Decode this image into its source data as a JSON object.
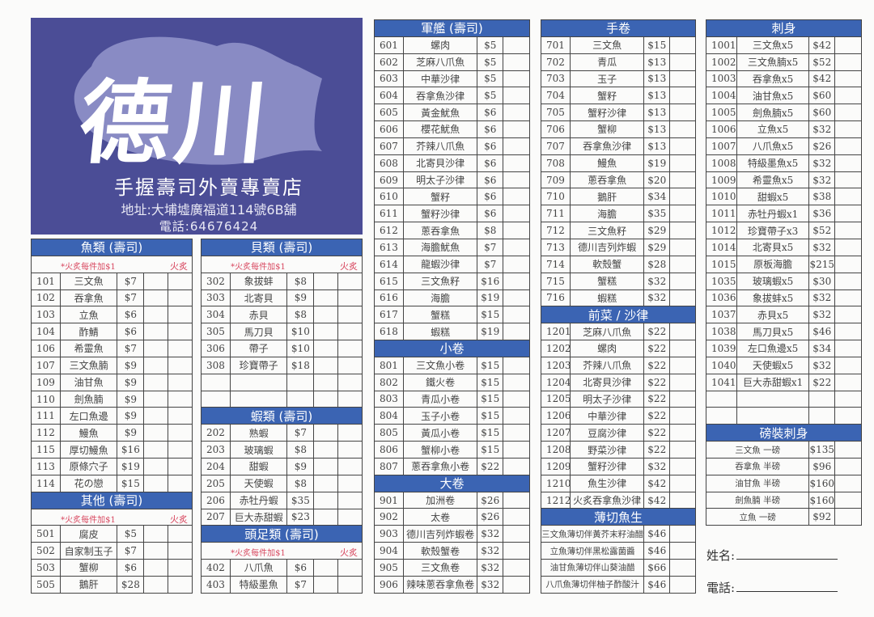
{
  "header": {
    "brand": "德川",
    "tagline": "手握壽司外賣專賣店",
    "address": "地址:大埔墟廣福道114號6B舖",
    "phone": "電話:64676424"
  },
  "colors": {
    "header_blue": "#3b64b3",
    "logo_bg": "#4b4d96",
    "note_red": "#d8475f"
  },
  "columns": [
    {
      "blocks": [
        {
          "type": "header",
          "title": "魚類 (壽司)"
        },
        {
          "type": "note",
          "text": "*火炙每件加$1",
          "right": "火炙"
        },
        {
          "type": "rows",
          "rows": [
            [
              "101",
              "三文魚",
              "$7"
            ],
            [
              "102",
              "吞拿魚",
              "$7"
            ],
            [
              "103",
              "立魚",
              "$6"
            ],
            [
              "104",
              "酢鯖",
              "$6"
            ],
            [
              "106",
              "希靈魚",
              "$7"
            ],
            [
              "107",
              "三文魚腩",
              "$9"
            ],
            [
              "109",
              "油甘魚",
              "$9"
            ],
            [
              "110",
              "劍魚腩",
              "$9"
            ],
            [
              "111",
              "左口魚邊",
              "$9"
            ],
            [
              "112",
              "鰻魚",
              "$9"
            ],
            [
              "115",
              "厚切鰻魚",
              "$16"
            ],
            [
              "113",
              "原條穴子",
              "$19"
            ],
            [
              "114",
              "花の戀",
              "$15"
            ]
          ]
        },
        {
          "type": "header",
          "title": "其他 (壽司)"
        },
        {
          "type": "note",
          "text": "*火炙每件加$1",
          "right": "火炙"
        },
        {
          "type": "rows",
          "rows": [
            [
              "501",
              "腐皮",
              "$5"
            ],
            [
              "502",
              "自家制玉子",
              "$7"
            ],
            [
              "503",
              "蟹柳",
              "$6"
            ],
            [
              "505",
              "鵝肝",
              "$28"
            ]
          ]
        }
      ]
    },
    {
      "blocks": [
        {
          "type": "header",
          "title": "貝類 (壽司)"
        },
        {
          "type": "note",
          "text": "*火炙每件加$1",
          "right": "火炙"
        },
        {
          "type": "rows",
          "rows": [
            [
              "302",
              "象拔蚌",
              "$8"
            ],
            [
              "303",
              "北寄貝",
              "$9"
            ],
            [
              "304",
              "赤貝",
              "$8"
            ],
            [
              "305",
              "馬刀貝",
              "$10"
            ],
            [
              "306",
              "帶子",
              "$10"
            ],
            [
              "308",
              "珍寶帶子",
              "$18"
            ],
            [
              "",
              "",
              ""
            ],
            [
              "",
              "",
              ""
            ]
          ]
        },
        {
          "type": "header",
          "title": "蝦類 (壽司)"
        },
        {
          "type": "rows",
          "rows": [
            [
              "202",
              "熟蝦",
              "$7"
            ],
            [
              "203",
              "玻璃蝦",
              "$8"
            ],
            [
              "204",
              "甜蝦",
              "$9"
            ],
            [
              "205",
              "天使蝦",
              "$8"
            ],
            [
              "206",
              "赤牡丹蝦",
              "$35"
            ],
            [
              "207",
              "巨大赤甜蝦",
              "$23"
            ]
          ]
        },
        {
          "type": "header",
          "title": "頭足類 (壽司)"
        },
        {
          "type": "note",
          "text": "*火炙每件加$1",
          "right": "火炙"
        },
        {
          "type": "rows",
          "rows": [
            [
              "402",
              "八爪魚",
              "$6"
            ],
            [
              "403",
              "特級墨魚",
              "$7"
            ]
          ]
        }
      ]
    },
    {
      "blocks": [
        {
          "type": "header",
          "title": "軍艦 (壽司)"
        },
        {
          "type": "rows",
          "rows": [
            [
              "601",
              "螺肉",
              "$5"
            ],
            [
              "602",
              "芝麻八爪魚",
              "$5"
            ],
            [
              "603",
              "中華沙律",
              "$5"
            ],
            [
              "604",
              "吞拿魚沙律",
              "$5"
            ],
            [
              "605",
              "黃金魷魚",
              "$6"
            ],
            [
              "606",
              "櫻花魷魚",
              "$6"
            ],
            [
              "607",
              "芥辣八爪魚",
              "$6"
            ],
            [
              "608",
              "北寄貝沙律",
              "$6"
            ],
            [
              "609",
              "明太子沙律",
              "$6"
            ],
            [
              "610",
              "蟹籽",
              "$6"
            ],
            [
              "611",
              "蟹籽沙律",
              "$6"
            ],
            [
              "612",
              "蔥吞拿魚",
              "$8"
            ],
            [
              "613",
              "海膽魷魚",
              "$7"
            ],
            [
              "614",
              "龍蝦沙律",
              "$7"
            ],
            [
              "615",
              "三文魚籽",
              "$16"
            ],
            [
              "616",
              "海膽",
              "$19"
            ],
            [
              "617",
              "蟹糕",
              "$15"
            ],
            [
              "618",
              "蝦糕",
              "$19"
            ]
          ]
        },
        {
          "type": "header",
          "title": "小卷"
        },
        {
          "type": "rows",
          "rows": [
            [
              "801",
              "三文魚小卷",
              "$15"
            ],
            [
              "802",
              "鐵火卷",
              "$15"
            ],
            [
              "803",
              "青瓜小卷",
              "$15"
            ],
            [
              "804",
              "玉子小卷",
              "$15"
            ],
            [
              "805",
              "黃瓜小卷",
              "$15"
            ],
            [
              "806",
              "蟹柳小卷",
              "$15"
            ],
            [
              "807",
              "蔥吞拿魚小卷",
              "$22"
            ]
          ]
        },
        {
          "type": "header",
          "title": "大卷"
        },
        {
          "type": "rows",
          "rows": [
            [
              "901",
              "加洲卷",
              "$26"
            ],
            [
              "902",
              "太卷",
              "$26"
            ],
            [
              "903",
              "德川吉列炸蝦卷",
              "$32"
            ],
            [
              "904",
              "軟殼蟹卷",
              "$32"
            ],
            [
              "905",
              "三文魚卷",
              "$32"
            ],
            [
              "906",
              "辣味蔥吞拿魚卷",
              "$32"
            ]
          ]
        }
      ]
    },
    {
      "blocks": [
        {
          "type": "header",
          "title": "手卷"
        },
        {
          "type": "rows",
          "rows": [
            [
              "701",
              "三文魚",
              "$15"
            ],
            [
              "702",
              "青瓜",
              "$13"
            ],
            [
              "703",
              "玉子",
              "$13"
            ],
            [
              "704",
              "蟹籽",
              "$13"
            ],
            [
              "705",
              "蟹籽沙律",
              "$13"
            ],
            [
              "706",
              "蟹柳",
              "$13"
            ],
            [
              "707",
              "吞拿魚沙律",
              "$13"
            ],
            [
              "708",
              "鰻魚",
              "$19"
            ],
            [
              "709",
              "蔥吞拿魚",
              "$20"
            ],
            [
              "710",
              "鵝肝",
              "$34"
            ],
            [
              "711",
              "海膽",
              "$35"
            ],
            [
              "712",
              "三文魚籽",
              "$29"
            ],
            [
              "713",
              "德川吉列炸蝦",
              "$29"
            ],
            [
              "714",
              "軟殼蟹",
              "$28"
            ],
            [
              "715",
              "蟹糕",
              "$32"
            ],
            [
              "716",
              "蝦糕",
              "$32"
            ]
          ]
        },
        {
          "type": "header",
          "title": "前菜 / 沙律"
        },
        {
          "type": "rows",
          "rows": [
            [
              "1201",
              "芝麻八爪魚",
              "$22"
            ],
            [
              "1202",
              "螺肉",
              "$22"
            ],
            [
              "1203",
              "芥辣八爪魚",
              "$22"
            ],
            [
              "1204",
              "北寄貝沙律",
              "$22"
            ],
            [
              "1205",
              "明太子沙律",
              "$22"
            ],
            [
              "1206",
              "中華沙律",
              "$22"
            ],
            [
              "1207",
              "豆腐沙律",
              "$22"
            ],
            [
              "1208",
              "野菜沙律",
              "$22"
            ],
            [
              "1209",
              "蟹籽沙律",
              "$32"
            ],
            [
              "1210",
              "魚生沙律",
              "$42"
            ],
            [
              "1212",
              "火炙吞拿魚沙律",
              "$42"
            ]
          ]
        },
        {
          "type": "header",
          "title": "薄切魚生"
        },
        {
          "type": "rows",
          "rows": [
            [
              "三文魚薄切伴黃芥末籽油醋",
              "$46"
            ],
            [
              "立魚薄切伴黑松露菌醬",
              "$46"
            ],
            [
              "油甘魚薄切伴山葵油醋",
              "$66"
            ],
            [
              "八爪魚薄切伴柚子酢酸汁",
              "$46"
            ]
          ]
        }
      ]
    },
    {
      "blocks": [
        {
          "type": "header",
          "title": "刺身"
        },
        {
          "type": "rows",
          "rows": [
            [
              "1001",
              "三文魚x5",
              "$42"
            ],
            [
              "1002",
              "三文魚腩x5",
              "$52"
            ],
            [
              "1003",
              "吞拿魚x5",
              "$42"
            ],
            [
              "1004",
              "油甘魚x5",
              "$60"
            ],
            [
              "1005",
              "劍魚腩x5",
              "$60"
            ],
            [
              "1006",
              "立魚x5",
              "$32"
            ],
            [
              "1007",
              "八爪魚x5",
              "$26"
            ],
            [
              "1008",
              "特級墨魚x5",
              "$32"
            ],
            [
              "1009",
              "希靈魚x5",
              "$32"
            ],
            [
              "1010",
              "甜蝦x5",
              "$38"
            ],
            [
              "1011",
              "赤牡丹蝦x1",
              "$36"
            ],
            [
              "1012",
              "珍寶帶子x3",
              "$52"
            ],
            [
              "1014",
              "北寄貝x5",
              "$32"
            ],
            [
              "1015",
              "原板海膽",
              "$215"
            ],
            [
              "1035",
              "玻璃蝦x5",
              "$30"
            ],
            [
              "1036",
              "象拔蚌x5",
              "$32"
            ],
            [
              "1037",
              "赤貝x5",
              "$32"
            ],
            [
              "1038",
              "馬刀貝x5",
              "$46"
            ],
            [
              "1039",
              "左口魚邊x5",
              "$34"
            ],
            [
              "1040",
              "天使蝦x5",
              "$32"
            ],
            [
              "1041",
              "巨大赤甜蝦x1",
              "$22"
            ],
            [
              "",
              "",
              ""
            ],
            [
              "",
              "",
              ""
            ]
          ]
        },
        {
          "type": "header",
          "title": "磅裝刺身"
        },
        {
          "type": "rows",
          "rows": [
            [
              "三文魚  一磅",
              "$135"
            ],
            [
              "吞拿魚  半磅",
              "$96"
            ],
            [
              "油甘魚  半磅",
              "$160"
            ],
            [
              "劍魚腩  半磅",
              "$160"
            ],
            [
              "立魚  一磅",
              "$92"
            ]
          ]
        }
      ]
    }
  ],
  "order_form": {
    "name_label": "姓名:",
    "phone_label": "電話:"
  }
}
